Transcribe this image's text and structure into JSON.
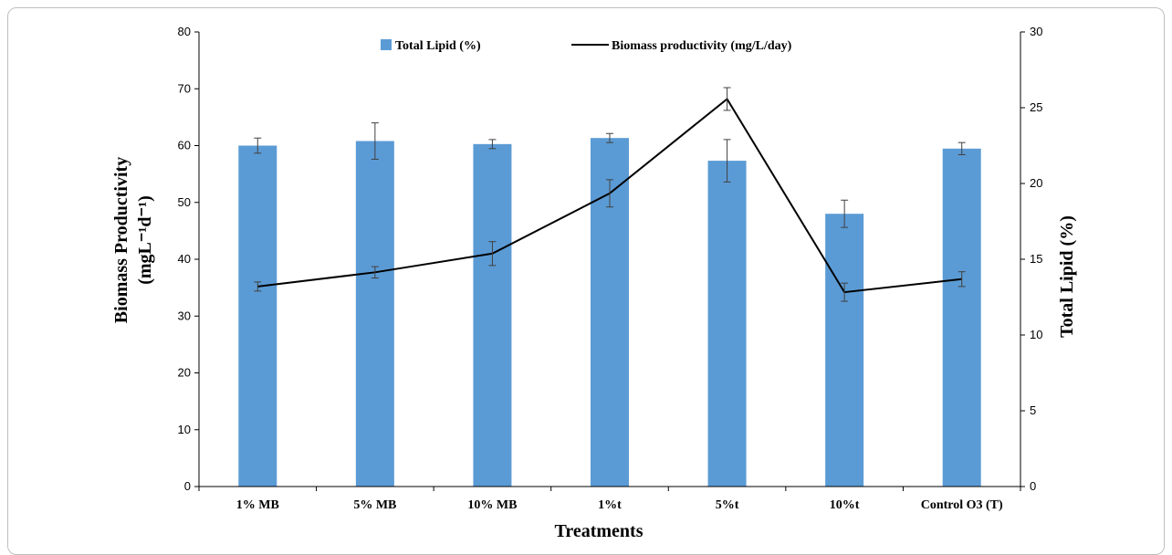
{
  "chart_data": {
    "type": "bar+line",
    "categories": [
      "1% MB",
      "5% MB",
      "10% MB",
      "1%t",
      "5%t",
      "10%t",
      "Control O3  (T)"
    ],
    "bar_series": {
      "name": "Total Lipid (%)",
      "axis": "right",
      "color": "#5b9bd5",
      "values": [
        22.5,
        22.8,
        22.6,
        23.0,
        21.5,
        18.0,
        22.3
      ],
      "errors": [
        0.5,
        1.2,
        0.3,
        0.3,
        1.4,
        0.9,
        0.4
      ]
    },
    "line_series": {
      "name": "Biomass productivity (mg/L/day)",
      "axis": "left",
      "color": "#000000",
      "values": [
        35.2,
        37.7,
        41.0,
        51.6,
        68.2,
        34.2,
        36.5
      ],
      "errors": [
        0.8,
        1.0,
        2.1,
        2.4,
        2.0,
        1.6,
        1.3
      ]
    },
    "xlabel": "Treatments",
    "ylabel_lines": [
      "Biomass Productivity",
      "(mgL⁻¹d⁻¹)"
    ],
    "y2label": "Total Lipid (%)",
    "ylim": [
      0,
      80
    ],
    "y_ticks": [
      0,
      10,
      20,
      30,
      40,
      50,
      60,
      70,
      80
    ],
    "y2lim": [
      0,
      30
    ],
    "y2_ticks": [
      0,
      5,
      10,
      15,
      20,
      25,
      30
    ],
    "legend_position": "top"
  }
}
